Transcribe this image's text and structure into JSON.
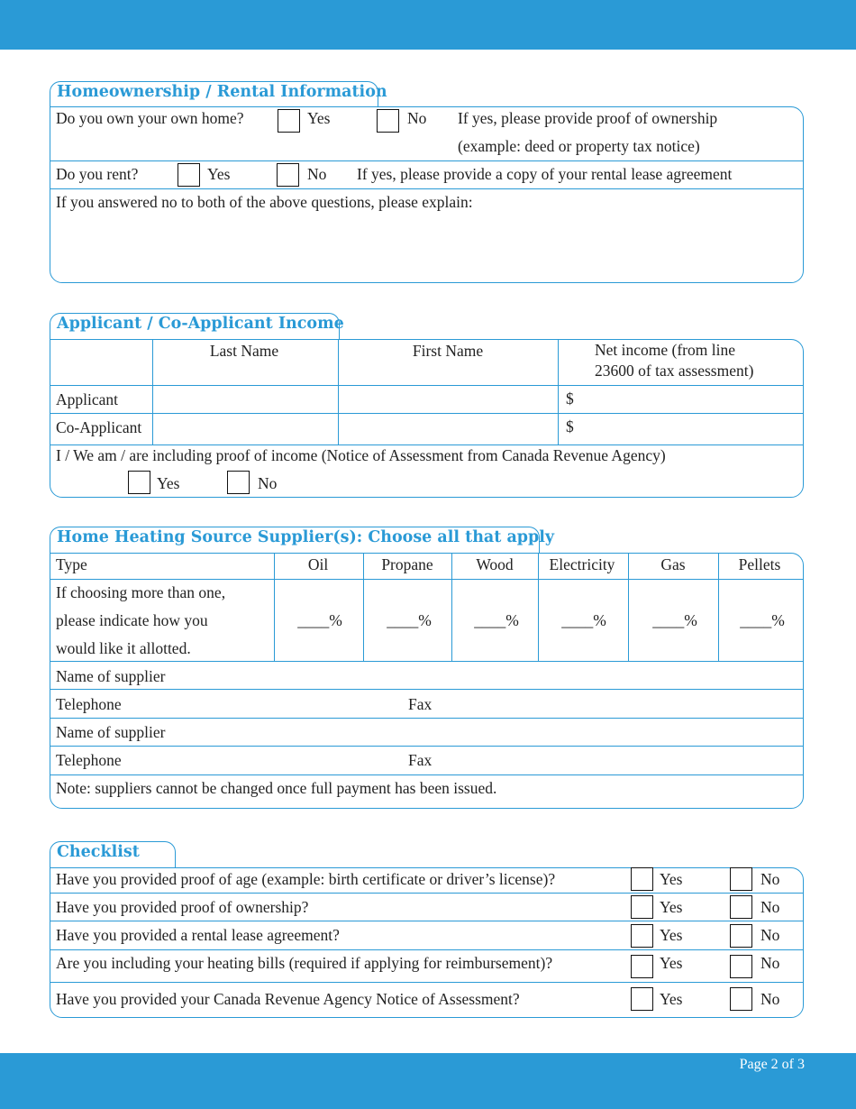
{
  "colors": {
    "accent": "#2a9ad6"
  },
  "footer": {
    "page": "Page 2 of 3"
  },
  "s1": {
    "title": "Homeownership / Rental Information",
    "own_q": "Do you own your own home?",
    "yes": "Yes",
    "no": "No",
    "own_note1": "If yes, please provide proof of ownership",
    "own_note2": "(example: deed or property tax notice)",
    "rent_q": "Do you rent?",
    "rent_note": "If yes, please provide a copy of your rental lease agreement",
    "explain": "If you answered no to both of the above questions, please explain:"
  },
  "s2": {
    "title": "Applicant / Co-Applicant Income",
    "col_last": "Last Name",
    "col_first": "First Name",
    "col_net1": "Net income (from line",
    "col_net2": "23600 of tax assessment)",
    "row_applicant": "Applicant",
    "row_coapplicant": "Co-Applicant",
    "dollar": "$",
    "proof": "I / We am / are including proof of income (Notice of Assessment from Canada Revenue Agency)",
    "yes": "Yes",
    "no": "No"
  },
  "s3": {
    "title": "Home Heating Source Supplier(s): Choose all that apply",
    "type": "Type",
    "types": [
      "Oil",
      "Propane",
      "Wood",
      "Electricity",
      "Gas",
      "Pellets"
    ],
    "allot1": "If choosing more than one,",
    "allot2": "please indicate how you",
    "allot3": "would like it allotted.",
    "pct": "____%",
    "supplier": "Name of supplier",
    "telephone": "Telephone",
    "fax": "Fax",
    "note": "Note: suppliers cannot be changed once full payment has been issued."
  },
  "s4": {
    "title": "Checklist",
    "yes": "Yes",
    "no": "No",
    "items": [
      "Have you provided proof of age (example: birth certificate or driver’s license)?",
      "Have you provided proof of ownership?",
      "Have you provided a rental lease agreement?",
      "Are you including your heating bills (required if applying for reimbursement)?",
      "Have you provided your Canada Revenue Agency Notice of Assessment?"
    ]
  }
}
